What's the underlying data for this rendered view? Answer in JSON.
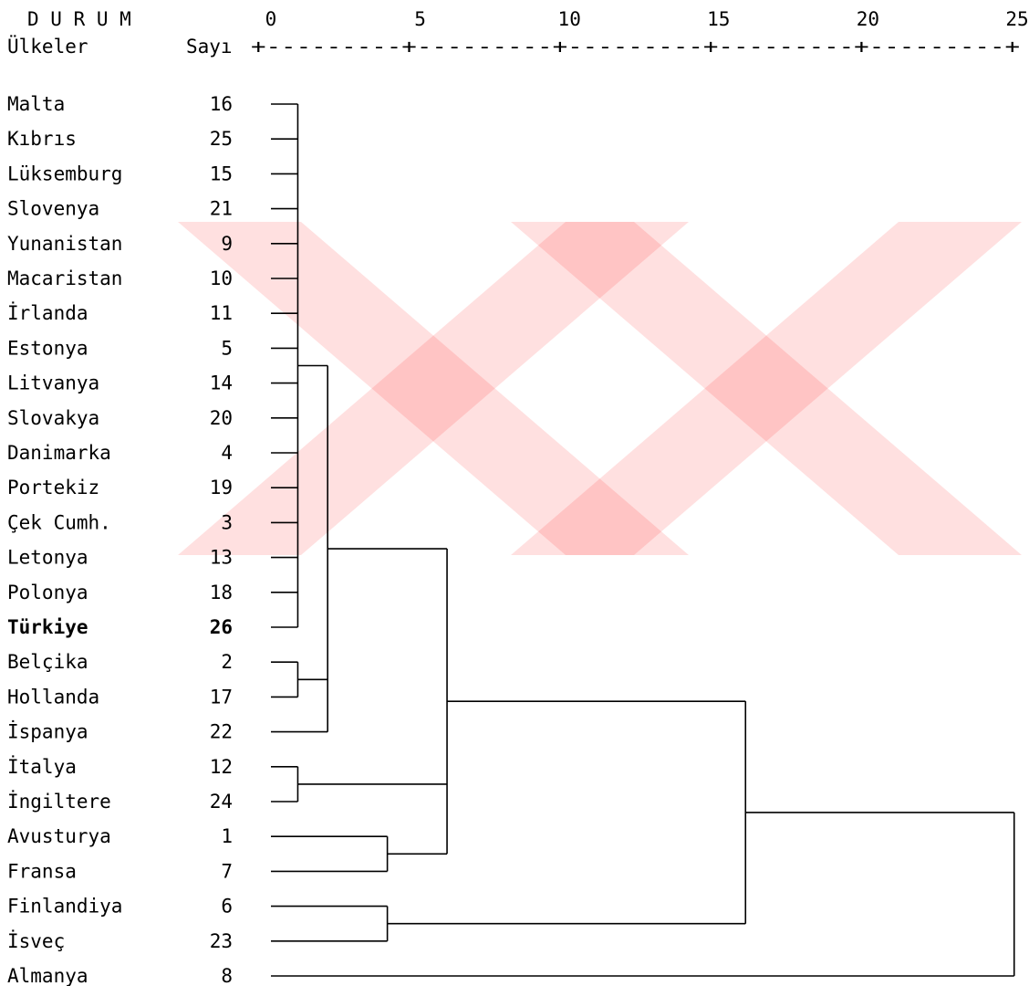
{
  "chart_data": {
    "type": "dendrogram",
    "header": {
      "title": "D U R U M",
      "col_countries": "Ülkeler",
      "col_number": "Sayı",
      "axis_ruler": "+---------+---------+---------+---------+---------+"
    },
    "x_ticks": [
      0,
      5,
      10,
      15,
      20,
      25
    ],
    "xlim": [
      0,
      25
    ],
    "leaves": [
      {
        "name": "Malta",
        "num": "16"
      },
      {
        "name": "Kıbrıs",
        "num": "25"
      },
      {
        "name": "Lüksemburg",
        "num": "15"
      },
      {
        "name": "Slovenya",
        "num": "21"
      },
      {
        "name": "Yunanistan",
        "num": "9"
      },
      {
        "name": "Macaristan",
        "num": "10"
      },
      {
        "name": "İrlanda",
        "num": "11"
      },
      {
        "name": "Estonya",
        "num": "5"
      },
      {
        "name": "Litvanya",
        "num": "14"
      },
      {
        "name": "Slovakya",
        "num": "20"
      },
      {
        "name": "Danimarka",
        "num": "4"
      },
      {
        "name": "Portekiz",
        "num": "19"
      },
      {
        "name": "Çek Cumh.",
        "num": "3"
      },
      {
        "name": "Letonya",
        "num": "13"
      },
      {
        "name": "Polonya",
        "num": "18"
      },
      {
        "name": "Türkiye",
        "num": "26",
        "bold": true
      },
      {
        "name": "Belçika",
        "num": "2"
      },
      {
        "name": "Hollanda",
        "num": "17"
      },
      {
        "name": "İspanya",
        "num": "22"
      },
      {
        "name": "İtalya",
        "num": "12"
      },
      {
        "name": "İngiltere",
        "num": "24"
      },
      {
        "name": "Avusturya",
        "num": "1"
      },
      {
        "name": "Fransa",
        "num": "7"
      },
      {
        "name": "Finlandiya",
        "num": "6"
      },
      {
        "name": "İsveç",
        "num": "23"
      },
      {
        "name": "Almanya",
        "num": "8"
      }
    ],
    "merges": [
      {
        "id": "A",
        "children": [
          0,
          1,
          2,
          3,
          4,
          5,
          6,
          7,
          8,
          9,
          10,
          11,
          12,
          13,
          14,
          15
        ],
        "height": 0.9
      },
      {
        "id": "B",
        "children": [
          16,
          17
        ],
        "height": 0.9
      },
      {
        "id": "C",
        "children": [
          "A",
          "B",
          18
        ],
        "height": 1.9
      },
      {
        "id": "D",
        "children": [
          19,
          20
        ],
        "height": 0.9
      },
      {
        "id": "E",
        "children": [
          21,
          22
        ],
        "height": 3.9
      },
      {
        "id": "F",
        "children": [
          "C",
          "D",
          "E"
        ],
        "height": 5.9
      },
      {
        "id": "G",
        "children": [
          23,
          24
        ],
        "height": 3.9
      },
      {
        "id": "H",
        "children": [
          "F",
          "G"
        ],
        "height": 15.9
      },
      {
        "id": "I",
        "children": [
          "H",
          25
        ],
        "height": 24.9
      }
    ]
  }
}
